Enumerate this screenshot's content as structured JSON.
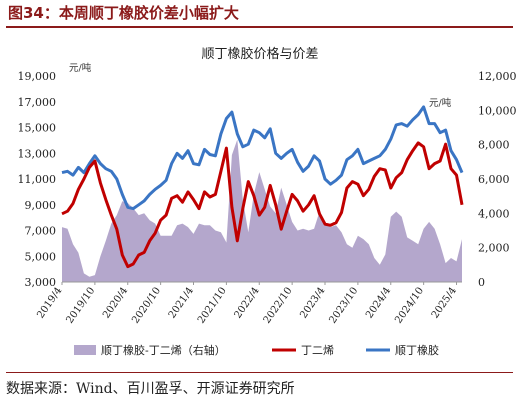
{
  "figure": {
    "label": "图34：本周顺丁橡胶价差小幅扩大",
    "source": "数据来源：Wind、百川盈孚、开源证券研究所"
  },
  "chart_data": {
    "type": "line",
    "title": "顺丁橡胶价格与价差",
    "left_unit": "元/吨",
    "right_unit": "元/吨",
    "y_left": {
      "lim": [
        3000,
        19000
      ],
      "ticks": [
        "3,000",
        "5,000",
        "7,000",
        "9,000",
        "11,000",
        "13,000",
        "15,000",
        "17,000",
        "19,000"
      ]
    },
    "y_right": {
      "lim": [
        0,
        12000
      ],
      "ticks": [
        "0",
        "2,000",
        "4,000",
        "6,000",
        "8,000",
        "10,000",
        "12,000"
      ]
    },
    "x_ticks": [
      "2019/4",
      "2019/10",
      "2020/4",
      "2020/10",
      "2021/4",
      "2021/10",
      "2022/4",
      "2022/10",
      "2023/4",
      "2023/10",
      "2024/4",
      "2024/10",
      "2025/4"
    ],
    "legend": [
      "顺丁橡胶-丁二烯（右轴）",
      "丁二烯",
      "顺丁橡胶"
    ],
    "colors": {
      "spread": "#b4a7cc",
      "butadiene": "#c00000",
      "br": "#3a75c4"
    },
    "x": [
      "2019-04",
      "2019-05",
      "2019-06",
      "2019-07",
      "2019-08",
      "2019-09",
      "2019-10",
      "2019-11",
      "2019-12",
      "2020-01",
      "2020-02",
      "2020-03",
      "2020-04",
      "2020-05",
      "2020-06",
      "2020-07",
      "2020-08",
      "2020-09",
      "2020-10",
      "2020-11",
      "2020-12",
      "2021-01",
      "2021-02",
      "2021-03",
      "2021-04",
      "2021-05",
      "2021-06",
      "2021-07",
      "2021-08",
      "2021-09",
      "2021-10",
      "2021-11",
      "2021-12",
      "2022-01",
      "2022-02",
      "2022-03",
      "2022-04",
      "2022-05",
      "2022-06",
      "2022-07",
      "2022-08",
      "2022-09",
      "2022-10",
      "2022-11",
      "2022-12",
      "2023-01",
      "2023-02",
      "2023-03",
      "2023-04",
      "2023-05",
      "2023-06",
      "2023-07",
      "2023-08",
      "2023-09",
      "2023-10",
      "2023-11",
      "2023-12",
      "2024-01",
      "2024-02",
      "2024-03",
      "2024-04",
      "2024-05",
      "2024-06",
      "2024-07",
      "2024-08",
      "2024-09",
      "2024-10",
      "2024-11",
      "2024-12",
      "2025-01",
      "2025-02",
      "2025-03",
      "2025-04",
      "2025-05"
    ],
    "series": [
      {
        "name": "顺丁橡胶",
        "axis": "left",
        "values": [
          11500,
          11600,
          11300,
          11900,
          11500,
          12200,
          12800,
          12200,
          11800,
          11600,
          11000,
          9800,
          8800,
          8700,
          9000,
          9300,
          9800,
          10200,
          10500,
          10900,
          12200,
          13000,
          12600,
          13200,
          12200,
          12100,
          13300,
          12900,
          12800,
          14500,
          15700,
          16200,
          14500,
          13500,
          13700,
          14800,
          14600,
          14200,
          14900,
          13000,
          12600,
          13000,
          13300,
          12300,
          11600,
          12000,
          12800,
          12400,
          11000,
          10600,
          10900,
          11300,
          12500,
          12800,
          13300,
          12200,
          12400,
          12600,
          12800,
          13300,
          14100,
          15200,
          15300,
          15100,
          15600,
          16000,
          16600,
          15300,
          15300,
          14600,
          14800,
          13200,
          12500,
          11500
        ]
      },
      {
        "name": "丁二烯",
        "axis": "left",
        "values": [
          8300,
          8500,
          9100,
          10200,
          11000,
          11900,
          12400,
          10700,
          9400,
          8200,
          7100,
          5100,
          4200,
          4400,
          5100,
          5300,
          6200,
          6800,
          7800,
          8200,
          9500,
          9700,
          9200,
          10000,
          9400,
          8700,
          10000,
          9600,
          9800,
          11600,
          13400,
          8800,
          6200,
          8700,
          10800,
          9700,
          8200,
          8800,
          10500,
          9000,
          7100,
          8500,
          9800,
          9300,
          8500,
          9000,
          9700,
          8300,
          7500,
          7400,
          7600,
          8400,
          10300,
          10800,
          10600,
          9700,
          10200,
          11200,
          11800,
          11700,
          10300,
          11100,
          11500,
          12500,
          13200,
          13800,
          13500,
          11800,
          12200,
          12400,
          13700,
          11800,
          11300,
          9000
        ]
      },
      {
        "name": "顺丁橡胶-丁二烯（右轴）",
        "axis": "right",
        "values": [
          3200,
          3100,
          2200,
          1700,
          500,
          300,
          400,
          1500,
          2400,
          3400,
          3900,
          4700,
          4600,
          4300,
          3900,
          4000,
          3600,
          3400,
          2700,
          2700,
          2700,
          3300,
          3400,
          3200,
          2800,
          3400,
          3300,
          3300,
          3000,
          2900,
          2300,
          7400,
          8300,
          4800,
          2900,
          5100,
          6400,
          5400,
          4400,
          4000,
          5500,
          4500,
          3500,
          3000,
          3100,
          3000,
          3100,
          4100,
          3500,
          3200,
          3300,
          2900,
          2200,
          2000,
          2700,
          2500,
          2200,
          1400,
          1000,
          1600,
          3800,
          4100,
          3800,
          2600,
          2400,
          2200,
          3100,
          3500,
          3100,
          2200,
          1100,
          1400,
          1200,
          2500
        ]
      }
    ]
  }
}
